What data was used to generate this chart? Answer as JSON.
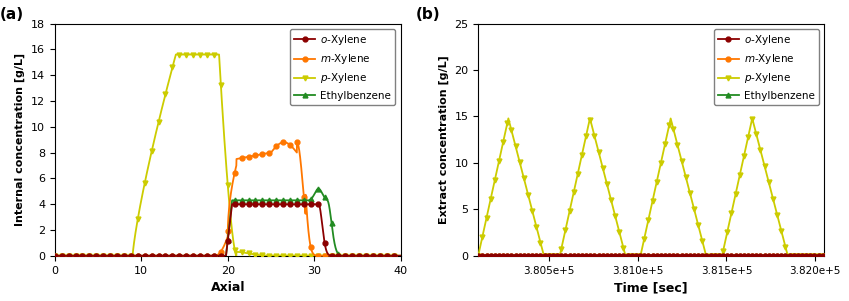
{
  "colors": {
    "o_xylene": "#8B0000",
    "m_xylene": "#FF7700",
    "p_xylene": "#CCCC00",
    "ethylbenzene": "#228B22"
  },
  "panel_a": {
    "xlabel": "Axial",
    "ylabel": "Internal concentration [g/L]",
    "xlim": [
      0,
      40
    ],
    "ylim": [
      0,
      18
    ],
    "yticks": [
      0,
      2,
      4,
      6,
      8,
      10,
      12,
      14,
      16,
      18
    ],
    "xticks": [
      0,
      10,
      20,
      30,
      40
    ]
  },
  "panel_b": {
    "xlabel": "Time [sec]",
    "ylabel": "Extract concentration [g/L]",
    "xlim": [
      380100,
      382050
    ],
    "ylim": [
      0,
      25
    ],
    "yticks": [
      0,
      5,
      10,
      15,
      20,
      25
    ],
    "xticks": [
      380500,
      381000,
      381500,
      382000
    ]
  }
}
